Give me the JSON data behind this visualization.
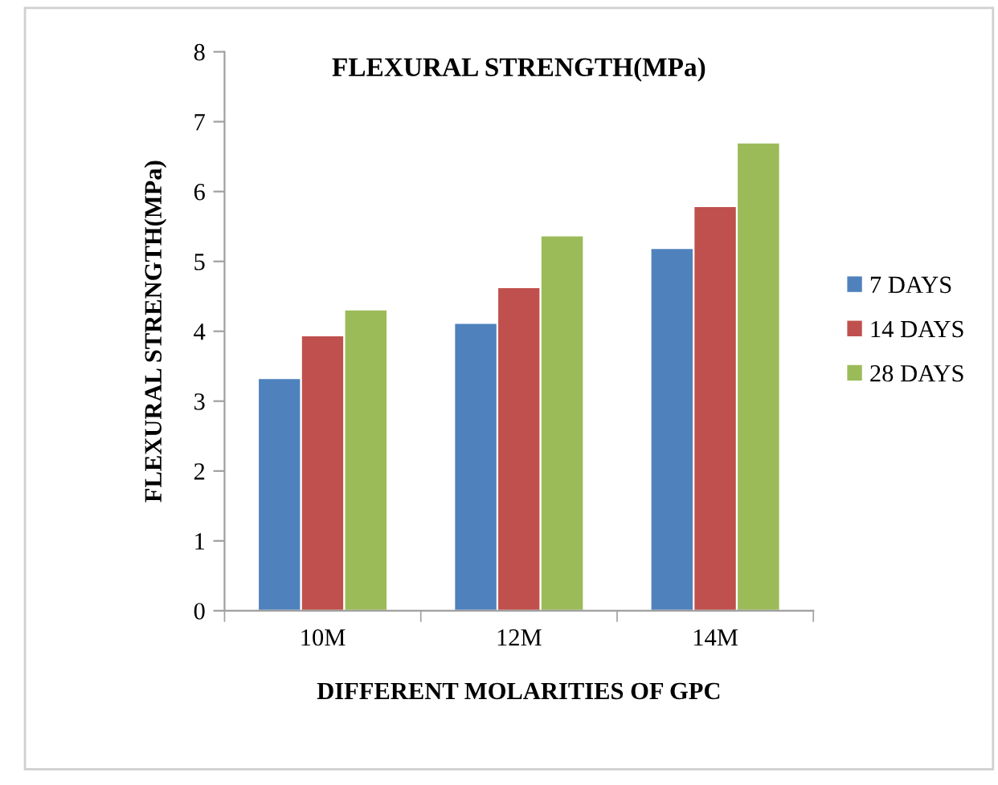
{
  "chart_data": {
    "type": "bar",
    "title": "FLEXURAL STRENGTH(MPa)",
    "xlabel": "DIFFERENT MOLARITIES OF GPC",
    "ylabel": "FLEXURAL STRENGTH(MPa)",
    "categories": [
      "10M",
      "12M",
      "14M"
    ],
    "series": [
      {
        "name": "7 DAYS",
        "color": "#4f81bd",
        "values": [
          3.33,
          4.12,
          5.19
        ]
      },
      {
        "name": "14 DAYS",
        "color": "#c0504d",
        "values": [
          3.94,
          4.63,
          5.79
        ]
      },
      {
        "name": "28 DAYS",
        "color": "#9bbb59",
        "values": [
          4.31,
          5.37,
          6.7
        ]
      }
    ],
    "ylim": [
      0,
      8
    ],
    "yticks": [
      0,
      1,
      2,
      3,
      4,
      5,
      6,
      7,
      8
    ],
    "grid": false,
    "legend": "right"
  }
}
